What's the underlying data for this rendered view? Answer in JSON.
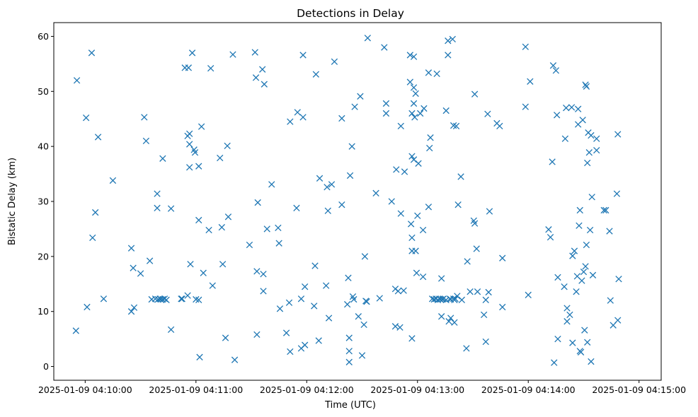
{
  "chart_data": {
    "type": "scatter",
    "title": "Detections in Delay",
    "xlabel": "Time (UTC)",
    "ylabel": "Bistatic Delay (km)",
    "x_unit": "seconds after 2025-01-09 04:10:00",
    "xlim": [
      -17,
      312
    ],
    "ylim": [
      -2.5,
      62.5
    ],
    "x_ticks": [
      {
        "value": 0,
        "label": "2025-01-09 04:10:00"
      },
      {
        "value": 60,
        "label": "2025-01-09 04:11:00"
      },
      {
        "value": 120,
        "label": "2025-01-09 04:12:00"
      },
      {
        "value": 180,
        "label": "2025-01-09 04:13:00"
      },
      {
        "value": 240,
        "label": "2025-01-09 04:14:00"
      },
      {
        "value": 300,
        "label": "2025-01-09 04:15:00"
      }
    ],
    "y_ticks": [
      {
        "value": 0,
        "label": "0"
      },
      {
        "value": 10,
        "label": "10"
      },
      {
        "value": 20,
        "label": "20"
      },
      {
        "value": 30,
        "label": "30"
      },
      {
        "value": 40,
        "label": "40"
      },
      {
        "value": 50,
        "label": "50"
      },
      {
        "value": 60,
        "label": "60"
      }
    ],
    "marker": "x",
    "color": "#1f77b4",
    "series": [
      {
        "name": "detections",
        "points": [
          [
            -4.5,
            52
          ],
          [
            -5,
            6.5
          ],
          [
            0.5,
            45.2
          ],
          [
            1,
            10.8
          ],
          [
            3.5,
            57
          ],
          [
            4,
            23.4
          ],
          [
            5.5,
            28
          ],
          [
            7,
            41.7
          ],
          [
            10,
            12.3
          ],
          [
            15,
            33.8
          ],
          [
            25,
            21.5
          ],
          [
            25,
            10
          ],
          [
            26,
            17.9
          ],
          [
            26.5,
            10.7
          ],
          [
            30,
            16.9
          ],
          [
            32,
            45.3
          ],
          [
            33,
            41
          ],
          [
            35,
            19.2
          ],
          [
            36,
            12.2
          ],
          [
            38,
            12.3
          ],
          [
            39,
            31.4
          ],
          [
            39,
            28.8
          ],
          [
            39.5,
            12.2
          ],
          [
            40.5,
            12.3
          ],
          [
            41,
            12.2
          ],
          [
            42,
            12.2
          ],
          [
            42,
            37.8
          ],
          [
            43,
            12.3
          ],
          [
            44,
            12.1
          ],
          [
            46.5,
            6.7
          ],
          [
            46.5,
            28.7
          ],
          [
            52,
            12.3
          ],
          [
            52.5,
            12.3
          ],
          [
            54,
            54.3
          ],
          [
            55.5,
            41.9
          ],
          [
            55.5,
            12.9
          ],
          [
            56,
            54.3
          ],
          [
            56.5,
            42.3
          ],
          [
            56.5,
            40.4
          ],
          [
            57,
            18.6
          ],
          [
            56.5,
            36.2
          ],
          [
            58,
            57
          ],
          [
            59,
            39.4
          ],
          [
            59.5,
            38.9
          ],
          [
            60,
            12.2
          ],
          [
            61.5,
            36.4
          ],
          [
            61.5,
            26.6
          ],
          [
            61.5,
            12.1
          ],
          [
            62,
            1.7
          ],
          [
            63,
            43.6
          ],
          [
            64,
            17
          ],
          [
            67,
            24.8
          ],
          [
            68,
            54.2
          ],
          [
            69,
            14.7
          ],
          [
            73,
            37.9
          ],
          [
            74,
            25.3
          ],
          [
            74.5,
            18.6
          ],
          [
            76,
            5.2
          ],
          [
            77,
            40.1
          ],
          [
            77.5,
            27.2
          ],
          [
            80,
            56.7
          ],
          [
            81,
            1.2
          ],
          [
            89,
            22.1
          ],
          [
            92,
            57.1
          ],
          [
            92.5,
            52.5
          ],
          [
            93,
            17.3
          ],
          [
            93,
            5.8
          ],
          [
            93.5,
            29.8
          ],
          [
            96,
            54
          ],
          [
            96.5,
            16.8
          ],
          [
            96.5,
            13.7
          ],
          [
            97,
            51.3
          ],
          [
            98.5,
            25
          ],
          [
            101,
            33.1
          ],
          [
            104.5,
            25.2
          ],
          [
            105,
            22.4
          ],
          [
            105.5,
            10.5
          ],
          [
            109,
            6.1
          ],
          [
            110.5,
            11.6
          ],
          [
            111,
            2.7
          ],
          [
            111,
            44.5
          ],
          [
            114.5,
            28.8
          ],
          [
            115,
            46.2
          ],
          [
            117,
            3.3
          ],
          [
            117,
            12.3
          ],
          [
            118,
            45.3
          ],
          [
            118,
            56.6
          ],
          [
            119,
            3.9
          ],
          [
            119,
            14.5
          ],
          [
            124,
            11
          ],
          [
            124.5,
            18.3
          ],
          [
            125,
            53.1
          ],
          [
            126.5,
            4.7
          ],
          [
            127,
            34.2
          ],
          [
            130.5,
            14.7
          ],
          [
            131,
            32.6
          ],
          [
            131.5,
            28.3
          ],
          [
            132,
            8.8
          ],
          [
            133.5,
            33.1
          ],
          [
            135,
            55.4
          ],
          [
            139,
            45.1
          ],
          [
            139,
            29.4
          ],
          [
            142,
            11.3
          ],
          [
            142.5,
            16.1
          ],
          [
            143,
            5.2
          ],
          [
            143,
            2.8
          ],
          [
            143,
            0.8
          ],
          [
            143.5,
            34.7
          ],
          [
            144.5,
            40
          ],
          [
            145,
            12.7
          ],
          [
            145.5,
            12.2
          ],
          [
            146,
            47.2
          ],
          [
            148,
            9.1
          ],
          [
            149,
            49.1
          ],
          [
            150,
            2
          ],
          [
            151,
            7.6
          ],
          [
            151.5,
            20
          ],
          [
            152,
            11.9
          ],
          [
            152.5,
            11.8
          ],
          [
            153,
            59.7
          ],
          [
            157.5,
            31.5
          ],
          [
            159.5,
            12.4
          ],
          [
            162,
            58
          ],
          [
            163,
            46
          ],
          [
            163,
            47.8
          ],
          [
            166,
            30
          ],
          [
            168,
            7.3
          ],
          [
            168,
            14.1
          ],
          [
            168.5,
            35.8
          ],
          [
            169.5,
            13.7
          ],
          [
            170.5,
            7.1
          ],
          [
            171,
            43.7
          ],
          [
            171,
            27.8
          ],
          [
            172.5,
            13.8
          ],
          [
            173,
            35.4
          ],
          [
            176,
            51.7
          ],
          [
            176,
            56.6
          ],
          [
            176.5,
            25.9
          ],
          [
            177,
            23.4
          ],
          [
            177,
            21
          ],
          [
            177,
            5.1
          ],
          [
            177,
            38.2
          ],
          [
            177,
            46
          ],
          [
            178,
            56.3
          ],
          [
            178,
            47.8
          ],
          [
            178,
            50.7
          ],
          [
            178,
            37.6
          ],
          [
            178.5,
            45.3
          ],
          [
            179,
            49.6
          ],
          [
            179,
            21
          ],
          [
            179.5,
            17
          ],
          [
            180,
            27.4
          ],
          [
            180.5,
            36.9
          ],
          [
            181.5,
            46
          ],
          [
            183,
            16.3
          ],
          [
            183,
            24.8
          ],
          [
            183.5,
            46.9
          ],
          [
            186,
            53.4
          ],
          [
            186,
            29
          ],
          [
            186.5,
            39.7
          ],
          [
            187,
            41.6
          ],
          [
            188,
            12.3
          ],
          [
            189,
            12.2
          ],
          [
            190,
            12.3
          ],
          [
            190.5,
            53.2
          ],
          [
            191,
            12.1
          ],
          [
            192,
            12.3
          ],
          [
            192.5,
            12.2
          ],
          [
            193,
            9.1
          ],
          [
            193,
            16
          ],
          [
            193.5,
            12.2
          ],
          [
            194,
            12.3
          ],
          [
            195.5,
            46.5
          ],
          [
            195.5,
            12.1
          ],
          [
            196.5,
            56.6
          ],
          [
            196.5,
            59.2
          ],
          [
            197,
            8.2
          ],
          [
            197.5,
            12.3
          ],
          [
            198,
            12.2
          ],
          [
            198,
            8.8
          ],
          [
            199,
            59.5
          ],
          [
            199.5,
            12.3
          ],
          [
            199.5,
            43.8
          ],
          [
            200,
            8
          ],
          [
            200,
            12.1
          ],
          [
            200.5,
            12.3
          ],
          [
            201,
            43.7
          ],
          [
            201.5,
            12.8
          ],
          [
            202,
            29.4
          ],
          [
            203.5,
            34.5
          ],
          [
            204,
            12.1
          ],
          [
            206.5,
            3.3
          ],
          [
            207,
            19.1
          ],
          [
            208.5,
            13.6
          ],
          [
            210.5,
            26.5
          ],
          [
            211,
            26
          ],
          [
            211,
            49.5
          ],
          [
            212,
            21.4
          ],
          [
            212.5,
            13.6
          ],
          [
            216,
            9.4
          ],
          [
            217,
            12.1
          ],
          [
            217,
            4.5
          ],
          [
            218,
            45.9
          ],
          [
            218.5,
            13.5
          ],
          [
            219,
            28.2
          ],
          [
            223,
            44.2
          ],
          [
            224.5,
            43.7
          ],
          [
            226,
            19.7
          ],
          [
            226,
            10.8
          ],
          [
            238.5,
            58.1
          ],
          [
            238.5,
            47.2
          ],
          [
            240,
            13
          ],
          [
            241,
            51.8
          ],
          [
            251,
            24.9
          ],
          [
            252,
            23.5
          ],
          [
            253,
            37.2
          ],
          [
            253.5,
            54.7
          ],
          [
            254,
            0.7
          ],
          [
            255,
            53.8
          ],
          [
            255.5,
            45.7
          ],
          [
            256,
            16.2
          ],
          [
            256,
            5
          ],
          [
            259.5,
            14.5
          ],
          [
            260,
            41.4
          ],
          [
            260.5,
            47
          ],
          [
            261,
            10.6
          ],
          [
            261,
            8.2
          ],
          [
            262.5,
            9.4
          ],
          [
            263.5,
            47.1
          ],
          [
            264,
            4.3
          ],
          [
            264,
            20.1
          ],
          [
            265,
            21
          ],
          [
            266,
            13.6
          ],
          [
            266.5,
            16.4
          ],
          [
            267,
            44
          ],
          [
            267,
            46.8
          ],
          [
            267.5,
            25.6
          ],
          [
            268,
            28.4
          ],
          [
            268,
            2.8
          ],
          [
            268.5,
            2.6
          ],
          [
            269,
            15.6
          ],
          [
            269.5,
            44.8
          ],
          [
            270,
            17.2
          ],
          [
            270.5,
            6.6
          ],
          [
            271,
            18.2
          ],
          [
            271,
            51.2
          ],
          [
            271.5,
            50.9
          ],
          [
            271.5,
            22.1
          ],
          [
            272,
            37
          ],
          [
            272,
            4.4
          ],
          [
            272.5,
            42.5
          ],
          [
            273,
            38.9
          ],
          [
            273.5,
            24.8
          ],
          [
            274,
            0.9
          ],
          [
            274,
            42
          ],
          [
            274.5,
            30.8
          ],
          [
            275,
            16.6
          ],
          [
            277,
            41.4
          ],
          [
            277,
            39.3
          ],
          [
            281,
            28.4
          ],
          [
            282,
            28.4
          ],
          [
            284,
            24.6
          ],
          [
            284.5,
            12
          ],
          [
            286,
            7.5
          ],
          [
            288,
            31.4
          ],
          [
            288.5,
            8.4
          ],
          [
            288.5,
            42.2
          ],
          [
            289,
            15.9
          ]
        ]
      }
    ]
  }
}
